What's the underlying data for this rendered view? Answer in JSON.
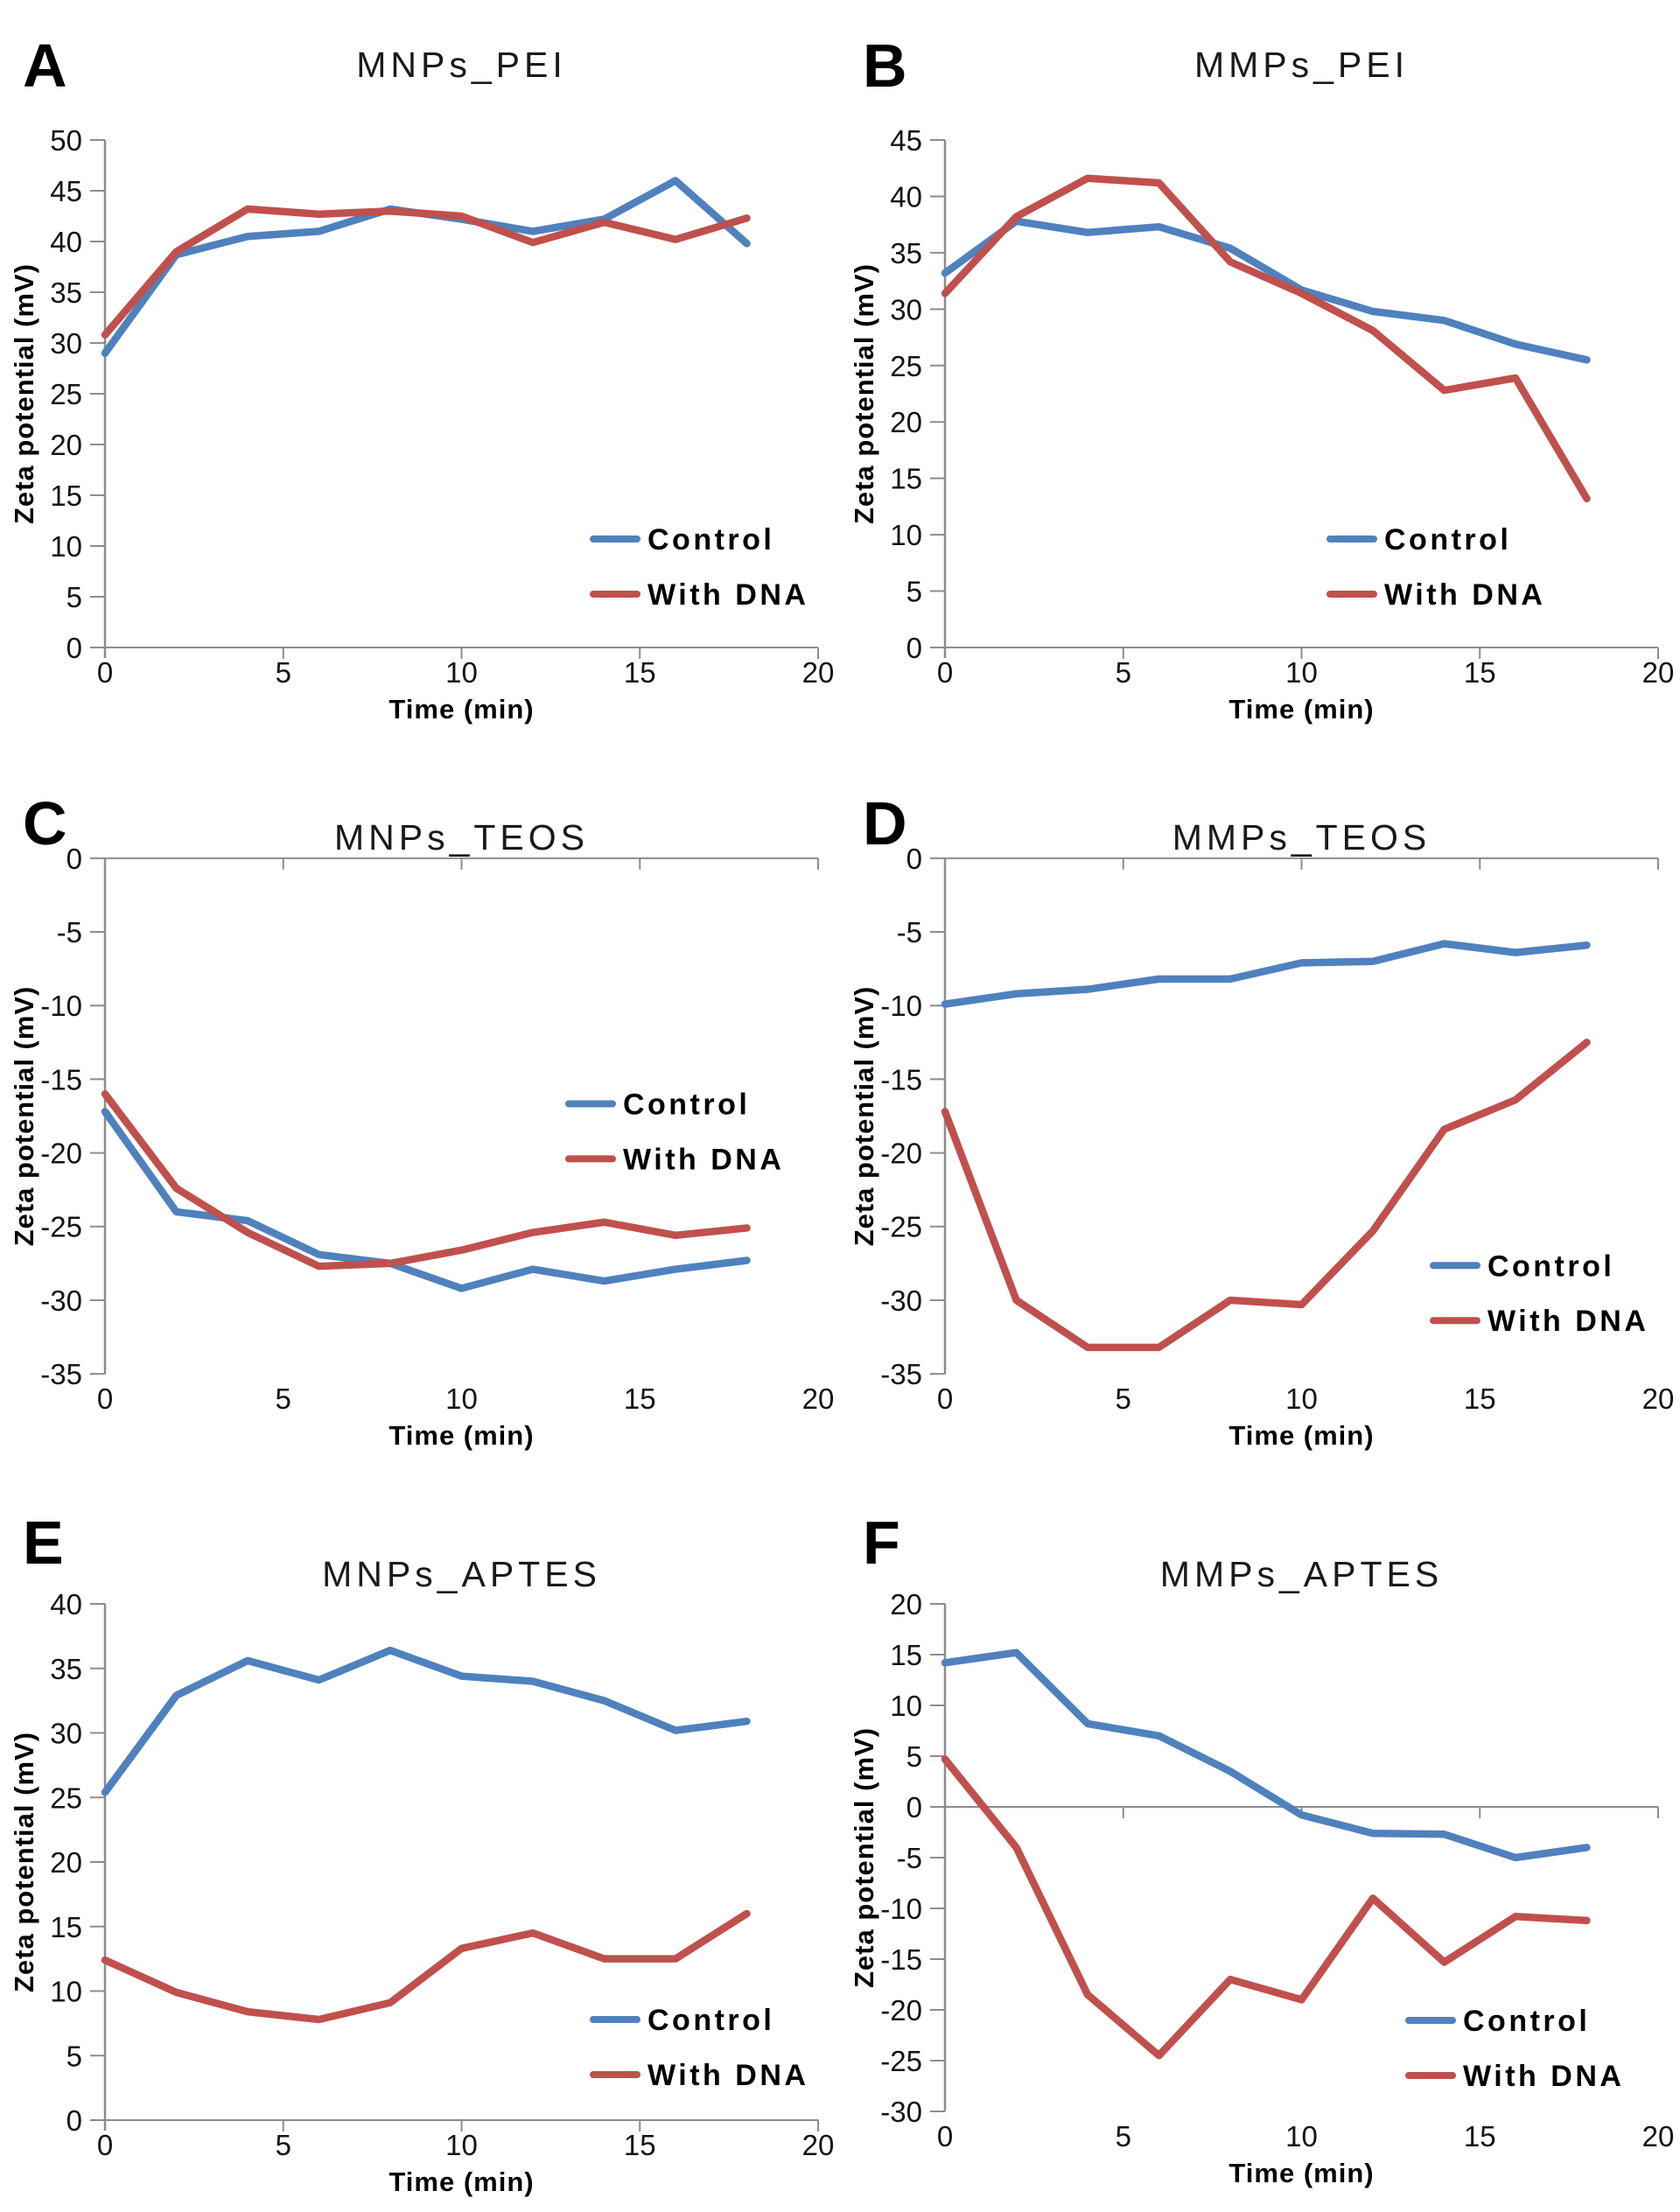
{
  "figure": {
    "colors": {
      "control": "#4F81BD",
      "with_dna": "#C0504D",
      "axis": "#8C8C8C",
      "text": "#141414",
      "title": "#1A1A1A"
    },
    "legend": {
      "control_label": "Control",
      "with_dna_label": "With DNA"
    }
  },
  "chart_data": [
    {
      "panel_letter": "A",
      "type": "line",
      "title": "MNPs_PEI",
      "xlabel": "Time (min)",
      "ylabel": "Zeta potential (mV)",
      "x": [
        0,
        2,
        4,
        6,
        8,
        10,
        12,
        14,
        16,
        18
      ],
      "series": [
        {
          "name": "Control",
          "color_key": "control",
          "values": [
            29.0,
            38.7,
            40.5,
            41.0,
            43.2,
            42.2,
            41.0,
            42.2,
            46.0,
            39.8
          ]
        },
        {
          "name": "With DNA",
          "color_key": "with_dna",
          "values": [
            30.8,
            39.0,
            43.2,
            42.7,
            43.0,
            42.5,
            39.9,
            41.9,
            40.2,
            42.3
          ]
        }
      ],
      "xlim": [
        0,
        20
      ],
      "ylim": [
        0,
        50
      ],
      "xticks": [
        0,
        5,
        10,
        15,
        20
      ],
      "ytick_step": 5,
      "grid": false,
      "legend_position": "inside-right-lower"
    },
    {
      "panel_letter": "B",
      "type": "line",
      "title": "MMPs_PEI",
      "xlabel": "Time (min)",
      "ylabel": "Zeta potential (mV)",
      "x": [
        0,
        2,
        4,
        6,
        8,
        10,
        12,
        14,
        16,
        18
      ],
      "series": [
        {
          "name": "Control",
          "color_key": "control",
          "values": [
            33.2,
            37.8,
            36.8,
            37.3,
            35.4,
            31.7,
            29.8,
            29.0,
            26.9,
            25.5
          ]
        },
        {
          "name": "With DNA",
          "color_key": "with_dna",
          "values": [
            31.4,
            38.2,
            41.6,
            41.2,
            34.2,
            31.4,
            28.1,
            22.8,
            23.9,
            13.2
          ]
        }
      ],
      "xlim": [
        0,
        20
      ],
      "ylim": [
        0,
        45
      ],
      "xticks": [
        0,
        5,
        10,
        15,
        20
      ],
      "ytick_step": 5,
      "grid": false,
      "legend_position": "inside-right-lower"
    },
    {
      "panel_letter": "C",
      "type": "line",
      "title": "MNPs_TEOS",
      "xlabel": "Time (min)",
      "ylabel": "Zeta potential (mV)",
      "x": [
        0,
        2,
        4,
        6,
        8,
        10,
        12,
        14,
        16,
        18
      ],
      "series": [
        {
          "name": "Control",
          "color_key": "control",
          "values": [
            -17.2,
            -24.0,
            -24.6,
            -26.9,
            -27.5,
            -29.2,
            -27.9,
            -28.7,
            -27.9,
            -27.3
          ]
        },
        {
          "name": "With DNA",
          "color_key": "with_dna",
          "values": [
            -16.0,
            -22.4,
            -25.4,
            -27.7,
            -27.5,
            -26.6,
            -25.4,
            -24.7,
            -25.6,
            -25.1
          ]
        }
      ],
      "xlim": [
        0,
        20
      ],
      "ylim": [
        -35,
        0
      ],
      "xticks": [
        0,
        5,
        10,
        15,
        20
      ],
      "ytick_step": 5,
      "grid": false,
      "legend_position": "inside-right-upper"
    },
    {
      "panel_letter": "D",
      "type": "line",
      "title": "MMPs_TEOS",
      "xlabel": "Time (min)",
      "ylabel": "Zeta potential (mV)",
      "x": [
        0,
        2,
        4,
        6,
        8,
        10,
        12,
        14,
        16,
        18
      ],
      "series": [
        {
          "name": "Control",
          "color_key": "control",
          "values": [
            -9.9,
            -9.2,
            -8.9,
            -8.2,
            -8.2,
            -7.1,
            -7.0,
            -5.8,
            -6.4,
            -5.9
          ]
        },
        {
          "name": "With DNA",
          "color_key": "with_dna",
          "values": [
            -17.2,
            -30.0,
            -33.2,
            -33.2,
            -30.0,
            -30.3,
            -25.3,
            -18.4,
            -16.4,
            -12.5
          ]
        }
      ],
      "xlim": [
        0,
        20
      ],
      "ylim": [
        -35,
        0
      ],
      "xticks": [
        0,
        5,
        10,
        15,
        20
      ],
      "ytick_step": 5,
      "grid": false,
      "legend_position": "inside-right-lower"
    },
    {
      "panel_letter": "E",
      "type": "line",
      "title": "MNPs_APTES",
      "xlabel": "Time (min)",
      "ylabel": "Zeta potential (mV)",
      "x": [
        0,
        2,
        4,
        6,
        8,
        10,
        12,
        14,
        16,
        18
      ],
      "series": [
        {
          "name": "Control",
          "color_key": "control",
          "values": [
            25.4,
            32.9,
            35.6,
            34.1,
            36.4,
            34.4,
            34.0,
            32.5,
            30.2,
            30.9
          ]
        },
        {
          "name": "With DNA",
          "color_key": "with_dna",
          "values": [
            12.4,
            9.9,
            8.4,
            7.8,
            9.1,
            13.3,
            14.5,
            12.5,
            12.5,
            16.0
          ]
        }
      ],
      "xlim": [
        0,
        20
      ],
      "ylim": [
        0,
        40
      ],
      "xticks": [
        0,
        5,
        10,
        15,
        20
      ],
      "ytick_step": 5,
      "grid": false,
      "legend_position": "inside-right-lower"
    },
    {
      "panel_letter": "F",
      "type": "line",
      "title": "MMPs_APTES",
      "xlabel": "Time (min)",
      "ylabel": "Zeta potential (mV)",
      "x": [
        0,
        2,
        4,
        6,
        8,
        10,
        12,
        14,
        16,
        18
      ],
      "series": [
        {
          "name": "Control",
          "color_key": "control",
          "values": [
            14.2,
            15.2,
            8.2,
            7.0,
            3.5,
            -0.8,
            -2.6,
            -2.7,
            -5.0,
            -4.0
          ]
        },
        {
          "name": "With DNA",
          "color_key": "with_dna",
          "values": [
            4.7,
            -4.0,
            -18.5,
            -24.5,
            -17.0,
            -19.0,
            -9.0,
            -15.3,
            -10.8,
            -11.2
          ]
        }
      ],
      "xlim": [
        0,
        20
      ],
      "ylim": [
        -30,
        20
      ],
      "xticks": [
        0,
        5,
        10,
        15,
        20
      ],
      "ytick_step": 5,
      "grid": false,
      "zero_line": true,
      "legend_position": "inside-right-lower"
    }
  ]
}
